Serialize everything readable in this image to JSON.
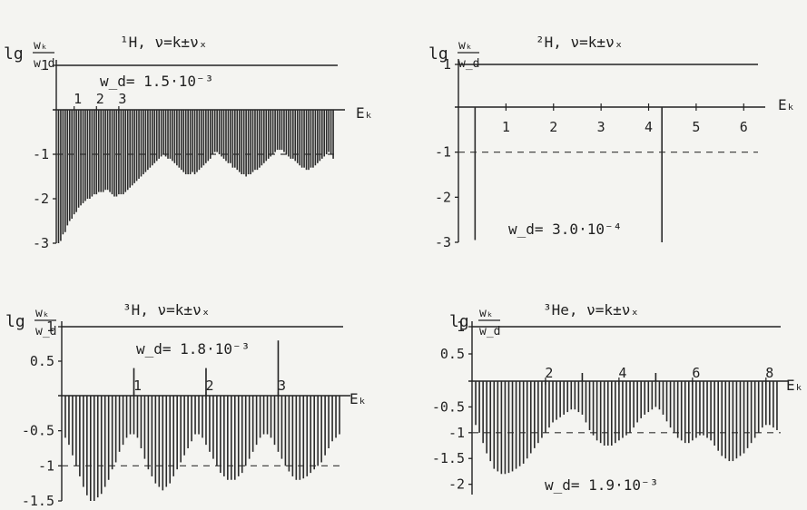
{
  "colors": {
    "ink": "#222222",
    "background": "#f4f4f1",
    "highlight": "#2c7fc0"
  },
  "chart_data": [
    {
      "type": "bar",
      "title": "¹H,   ν=k±νₓ",
      "ylabel_lg": "lg",
      "ylabel_num": "wₖ",
      "ylabel_den": "w_d",
      "xlabel": "Eₖ",
      "note": "w_d= 1.5·10⁻³",
      "ylim": [
        -3,
        1
      ],
      "xlim": [
        0,
        6.3
      ],
      "grid": false,
      "reference_line": -1,
      "yticks": [
        1,
        -1,
        -2,
        -3
      ],
      "ytick_labels": [
        "1",
        "-1",
        "-2",
        "-3"
      ],
      "xticks": [
        0.4,
        0.9,
        1.4
      ],
      "xtick_labels": [
        "1",
        "2",
        "3"
      ],
      "series": [
        {
          "style": "bars",
          "x": [
            0.05,
            0.1,
            0.15,
            0.2,
            0.25,
            0.3,
            0.35,
            0.4,
            0.45,
            0.5,
            0.55,
            0.6,
            0.65,
            0.7,
            0.75,
            0.8,
            0.85,
            0.9,
            0.95,
            1.0,
            1.05,
            1.1,
            1.15,
            1.2,
            1.25,
            1.3,
            1.35,
            1.4,
            1.45,
            1.5,
            1.55,
            1.6,
            1.65,
            1.7,
            1.75,
            1.8,
            1.85,
            1.9,
            1.95,
            2.0,
            2.05,
            2.1,
            2.15,
            2.2,
            2.25,
            2.3,
            2.35,
            2.4,
            2.45,
            2.5,
            2.55,
            2.6,
            2.65,
            2.7,
            2.75,
            2.8,
            2.85,
            2.9,
            2.95,
            3.0,
            3.05,
            3.1,
            3.15,
            3.2,
            3.25,
            3.3,
            3.35,
            3.4,
            3.45,
            3.5,
            3.55,
            3.6,
            3.65,
            3.7,
            3.75,
            3.8,
            3.85,
            3.9,
            3.95,
            4.0,
            4.05,
            4.1,
            4.15,
            4.2,
            4.25,
            4.3,
            4.35,
            4.4,
            4.45,
            4.5,
            4.55,
            4.6,
            4.65,
            4.7,
            4.75,
            4.8,
            4.85,
            4.9,
            4.95,
            5.0,
            5.05,
            5.1,
            5.15,
            5.2,
            5.25,
            5.3,
            5.35,
            5.4,
            5.45,
            5.5,
            5.55,
            5.6,
            5.65,
            5.7,
            5.75,
            5.8,
            5.85,
            5.9,
            5.95,
            6.0,
            6.05,
            6.1,
            6.15,
            6.2
          ],
          "values": [
            -3.0,
            -2.95,
            -2.8,
            -2.75,
            -2.6,
            -2.5,
            -2.45,
            -2.35,
            -2.3,
            -2.2,
            -2.15,
            -2.1,
            -2.05,
            -2.0,
            -2.0,
            -1.95,
            -1.9,
            -1.9,
            -1.85,
            -1.85,
            -1.85,
            -1.8,
            -1.8,
            -1.85,
            -1.9,
            -1.95,
            -1.95,
            -1.9,
            -1.9,
            -1.9,
            -1.85,
            -1.8,
            -1.75,
            -1.7,
            -1.65,
            -1.6,
            -1.55,
            -1.5,
            -1.45,
            -1.4,
            -1.35,
            -1.3,
            -1.25,
            -1.2,
            -1.15,
            -1.1,
            -1.05,
            -1.0,
            -1.05,
            -1.1,
            -1.1,
            -1.15,
            -1.2,
            -1.25,
            -1.3,
            -1.35,
            -1.4,
            -1.45,
            -1.45,
            -1.45,
            -1.4,
            -1.45,
            -1.4,
            -1.35,
            -1.3,
            -1.25,
            -1.2,
            -1.15,
            -1.1,
            -1.0,
            -0.95,
            -0.95,
            -1.0,
            -1.05,
            -1.1,
            -1.15,
            -1.2,
            -1.2,
            -1.3,
            -1.3,
            -1.35,
            -1.4,
            -1.45,
            -1.45,
            -1.5,
            -1.45,
            -1.45,
            -1.4,
            -1.35,
            -1.35,
            -1.3,
            -1.25,
            -1.2,
            -1.15,
            -1.1,
            -1.05,
            -1.0,
            -0.95,
            -0.9,
            -0.9,
            -0.9,
            -0.95,
            -1.0,
            -1.05,
            -1.1,
            -1.1,
            -1.15,
            -1.2,
            -1.25,
            -1.3,
            -1.3,
            -1.35,
            -1.35,
            -1.3,
            -1.3,
            -1.25,
            -1.2,
            -1.15,
            -1.1,
            -1.05,
            -1.0,
            -0.95,
            -1.0,
            -1.1
          ]
        }
      ]
    },
    {
      "type": "bar",
      "title": "²H,   ν=k±νₓ",
      "ylabel_lg": "lg",
      "ylabel_num": "wₖ",
      "ylabel_den": "w_d",
      "xlabel": "Eₖ",
      "note": "w_d= 3.0·10⁻⁴",
      "ylim": [
        -3,
        1
      ],
      "xlim": [
        0,
        6.3
      ],
      "grid": false,
      "reference_line": -1,
      "yticks": [
        1,
        -1,
        -2,
        -3
      ],
      "ytick_labels": [
        "1",
        "-1",
        "-2",
        "-3"
      ],
      "xticks": [
        1,
        2,
        3,
        4,
        5,
        6
      ],
      "xtick_labels": [
        "1",
        "2",
        "3",
        "4",
        "5",
        "6"
      ],
      "series": [
        {
          "style": "bars",
          "x": [
            0.35,
            4.28
          ],
          "values": [
            -2.95,
            -3.0
          ]
        }
      ]
    },
    {
      "type": "bar",
      "title": "³H,   ν=k±νₓ",
      "ylabel_lg": "lg",
      "ylabel_num": "wₖ",
      "ylabel_den": "w_d",
      "xlabel": "Eₖ",
      "note": "w_d= 1.8·10⁻³",
      "ylim": [
        -1.5,
        1
      ],
      "xlim": [
        0,
        3.9
      ],
      "grid": false,
      "reference_line": -1,
      "yticks": [
        1,
        0.5,
        -0.5,
        -1,
        -1.5
      ],
      "ytick_labels": [
        "1",
        "0.5",
        "-0.5",
        "-1",
        "-1.5"
      ],
      "xticks": [
        1,
        2,
        3
      ],
      "xtick_labels": [
        "1",
        "2",
        "3"
      ],
      "series": [
        {
          "style": "bars",
          "x": [
            0.05,
            0.1,
            0.15,
            0.2,
            0.25,
            0.3,
            0.35,
            0.4,
            0.45,
            0.5,
            0.55,
            0.6,
            0.65,
            0.7,
            0.75,
            0.8,
            0.85,
            0.9,
            0.95,
            1.0,
            1.05,
            1.1,
            1.15,
            1.2,
            1.25,
            1.3,
            1.35,
            1.4,
            1.45,
            1.5,
            1.55,
            1.6,
            1.65,
            1.7,
            1.75,
            1.8,
            1.85,
            1.9,
            1.95,
            2.0,
            2.05,
            2.1,
            2.15,
            2.2,
            2.25,
            2.3,
            2.35,
            2.4,
            2.45,
            2.5,
            2.55,
            2.6,
            2.65,
            2.7,
            2.75,
            2.8,
            2.85,
            2.9,
            2.95,
            3.0,
            3.05,
            3.1,
            3.15,
            3.2,
            3.25,
            3.3,
            3.35,
            3.4,
            3.45,
            3.5,
            3.55,
            3.6,
            3.65,
            3.7,
            3.75,
            3.8,
            3.85
          ],
          "values": [
            -0.6,
            -0.7,
            -0.85,
            -1.0,
            -1.15,
            -1.3,
            -1.42,
            -1.5,
            -1.5,
            -1.45,
            -1.4,
            -1.3,
            -1.2,
            -1.05,
            -0.95,
            -0.8,
            -0.7,
            -0.6,
            -0.55,
            -0.55,
            -0.6,
            -0.75,
            -0.9,
            -1.05,
            -1.15,
            -1.25,
            -1.3,
            -1.35,
            -1.3,
            -1.25,
            -1.15,
            -1.05,
            -0.95,
            -0.85,
            -0.75,
            -0.65,
            -0.55,
            -0.55,
            -0.6,
            -0.7,
            -0.8,
            -0.9,
            -1.0,
            -1.1,
            -1.15,
            -1.2,
            -1.2,
            -1.2,
            -1.15,
            -1.1,
            -1.0,
            -0.9,
            -0.8,
            -0.7,
            -0.6,
            -0.55,
            -0.55,
            -0.6,
            -0.7,
            -0.8,
            -0.9,
            -1.0,
            -1.08,
            -1.15,
            -1.2,
            -1.2,
            -1.18,
            -1.15,
            -1.1,
            -1.05,
            -1.0,
            -0.95,
            -0.85,
            -0.75,
            -0.65,
            -0.6,
            -0.55
          ]
        },
        {
          "style": "markers",
          "x": [
            1.0,
            2.0,
            3.0
          ],
          "values": [
            0.4,
            0.4,
            0.8
          ]
        }
      ]
    },
    {
      "type": "bar",
      "title": "³He,   ν=k±νₓ",
      "ylabel_lg": "lg",
      "ylabel_num": "wₖ",
      "ylabel_den": "w_d",
      "xlabel": "Eₖ",
      "note": "w_d= 1.9·10⁻³",
      "ylim": [
        -2.2,
        1
      ],
      "xlim": [
        0,
        8.4
      ],
      "grid": false,
      "reference_line": -1,
      "yticks": [
        1,
        0.5,
        -0.5,
        -1,
        -1.5,
        -2
      ],
      "ytick_labels": [
        "1",
        "0.5",
        "-0.5",
        "-1",
        "-1.5",
        "-2"
      ],
      "xticks": [
        2,
        4,
        6,
        8
      ],
      "xtick_labels": [
        "2",
        "4",
        "6",
        "8"
      ],
      "series": [
        {
          "style": "bars",
          "x": [
            0.1,
            0.2,
            0.3,
            0.4,
            0.5,
            0.6,
            0.7,
            0.8,
            0.9,
            1.0,
            1.1,
            1.2,
            1.3,
            1.4,
            1.5,
            1.6,
            1.7,
            1.8,
            1.9,
            2.0,
            2.1,
            2.2,
            2.3,
            2.4,
            2.5,
            2.6,
            2.7,
            2.8,
            2.9,
            3.0,
            3.1,
            3.2,
            3.3,
            3.4,
            3.5,
            3.6,
            3.7,
            3.8,
            3.9,
            4.0,
            4.1,
            4.2,
            4.3,
            4.4,
            4.5,
            4.6,
            4.7,
            4.8,
            4.9,
            5.0,
            5.1,
            5.2,
            5.3,
            5.4,
            5.5,
            5.6,
            5.7,
            5.8,
            5.9,
            6.0,
            6.1,
            6.2,
            6.3,
            6.4,
            6.5,
            6.6,
            6.7,
            6.8,
            6.9,
            7.0,
            7.1,
            7.2,
            7.3,
            7.4,
            7.5,
            7.6,
            7.7,
            7.8,
            7.9,
            8.0,
            8.1,
            8.2,
            8.3
          ],
          "values": [
            -0.85,
            -1.0,
            -1.2,
            -1.4,
            -1.55,
            -1.7,
            -1.75,
            -1.8,
            -1.8,
            -1.78,
            -1.75,
            -1.7,
            -1.65,
            -1.6,
            -1.5,
            -1.4,
            -1.3,
            -1.2,
            -1.1,
            -1.0,
            -0.9,
            -0.8,
            -0.75,
            -0.7,
            -0.65,
            -0.6,
            -0.55,
            -0.55,
            -0.6,
            -0.65,
            -0.8,
            -0.95,
            -1.05,
            -1.15,
            -1.2,
            -1.25,
            -1.25,
            -1.25,
            -1.2,
            -1.15,
            -1.1,
            -1.05,
            -1.0,
            -0.9,
            -0.8,
            -0.72,
            -0.65,
            -0.6,
            -0.55,
            -0.5,
            -0.55,
            -0.65,
            -0.78,
            -0.9,
            -1.0,
            -1.1,
            -1.15,
            -1.2,
            -1.2,
            -1.15,
            -1.1,
            -1.05,
            -1.05,
            -1.1,
            -1.15,
            -1.25,
            -1.35,
            -1.45,
            -1.5,
            -1.55,
            -1.55,
            -1.5,
            -1.45,
            -1.4,
            -1.3,
            -1.2,
            -1.1,
            -1.0,
            -0.9,
            -0.85,
            -0.85,
            -0.9,
            -0.95
          ]
        },
        {
          "style": "markers",
          "x": [
            3.0,
            5.0
          ],
          "values": [
            0.15,
            0.15
          ]
        }
      ]
    }
  ]
}
